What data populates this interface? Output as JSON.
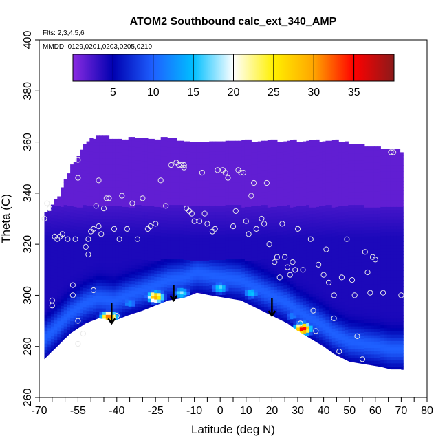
{
  "chart_data": {
    "type": "heatmap",
    "title": "ATOM2 Southbound calc_ext_340_AMP",
    "subtitle_flights": "Flts: 2,3,4,5,6",
    "subtitle_dates": "MMDD: 0129,0201,0203,0205,0210",
    "xlabel": "Latitude (deg N)",
    "ylabel": "Theta (C)",
    "xlim": [
      -70,
      80
    ],
    "ylim": [
      260,
      400
    ],
    "x_ticks": [
      -70,
      -55,
      -40,
      -25,
      -10,
      0,
      10,
      20,
      30,
      40,
      50,
      60,
      70,
      80
    ],
    "y_ticks": [
      260,
      280,
      300,
      320,
      340,
      360,
      380,
      400
    ],
    "colorbar": {
      "range": [
        0,
        40
      ],
      "ticks": [
        5,
        10,
        15,
        20,
        25,
        30,
        35
      ],
      "colors": [
        "#8a2be2",
        "#0000b0",
        "#1e60ff",
        "#00bfff",
        "#ffffff",
        "#fff000",
        "#ffa500",
        "#ff0000",
        "#8b1a1a"
      ]
    },
    "envelope": {
      "lat": [
        -68,
        -62,
        -58,
        -52,
        -47,
        -41,
        -36,
        -30,
        -20,
        -14,
        -9,
        -4,
        2,
        8,
        14,
        20,
        26,
        30,
        35,
        40,
        44,
        50,
        56,
        62,
        66,
        70
      ],
      "theta_bottom": [
        275,
        281,
        285,
        289,
        291,
        290,
        292,
        294,
        298,
        299,
        301,
        300,
        299,
        298,
        295,
        292,
        289,
        286,
        283,
        280,
        277,
        274,
        273,
        272,
        271,
        271
      ],
      "theta_top": [
        331,
        339,
        349,
        359,
        362,
        361,
        361,
        361,
        361,
        360,
        360,
        360,
        360,
        360,
        360,
        360,
        360,
        360,
        360,
        360,
        360,
        359,
        358,
        357,
        357,
        356
      ]
    },
    "hotspots": [
      {
        "lat": -25,
        "theta": 299.5,
        "value": 30
      },
      {
        "lat": -43,
        "theta": 291.5,
        "value": 33
      },
      {
        "lat": 32,
        "theta": 287,
        "value": 36
      },
      {
        "lat": -15,
        "theta": 301,
        "value": 18
      },
      {
        "lat": 0,
        "theta": 303,
        "value": 17
      },
      {
        "lat": 12,
        "theta": 301,
        "value": 16
      },
      {
        "lat": -35,
        "theta": 297,
        "value": 13
      },
      {
        "lat": 28,
        "theta": 292,
        "value": 12
      }
    ],
    "arrows": [
      {
        "lat": -42,
        "theta_from": 297,
        "theta_to": 289
      },
      {
        "lat": -18,
        "theta_from": 304,
        "theta_to": 298
      },
      {
        "lat": 20,
        "theta_from": 299,
        "theta_to": 292
      }
    ],
    "points": [
      [
        -68,
        330
      ],
      [
        -67,
        336
      ],
      [
        -66,
        334
      ],
      [
        -65,
        296
      ],
      [
        -65,
        298
      ],
      [
        -64,
        323
      ],
      [
        -63,
        322
      ],
      [
        -62,
        323
      ],
      [
        -61,
        324
      ],
      [
        -59,
        322
      ],
      [
        -57,
        300
      ],
      [
        -57,
        304
      ],
      [
        -56,
        322
      ],
      [
        -55,
        346
      ],
      [
        -55,
        353
      ],
      [
        -55,
        290
      ],
      [
        -55,
        281
      ],
      [
        -53,
        285
      ],
      [
        -52,
        319
      ],
      [
        -51,
        316
      ],
      [
        -51,
        322
      ],
      [
        -50,
        325
      ],
      [
        -49,
        302
      ],
      [
        -49,
        326
      ],
      [
        -48,
        335
      ],
      [
        -47,
        327
      ],
      [
        -47,
        345
      ],
      [
        -46,
        324
      ],
      [
        -45,
        334
      ],
      [
        -44,
        338
      ],
      [
        -43,
        338
      ],
      [
        -41,
        326
      ],
      [
        -40,
        292
      ],
      [
        -39,
        322
      ],
      [
        -38,
        339
      ],
      [
        -36,
        326
      ],
      [
        -34,
        336
      ],
      [
        -32,
        322
      ],
      [
        -30,
        338
      ],
      [
        -28,
        326
      ],
      [
        -27,
        327
      ],
      [
        -25,
        328
      ],
      [
        -23,
        345
      ],
      [
        -21,
        335
      ],
      [
        -19,
        351
      ],
      [
        -17,
        352
      ],
      [
        -16,
        351
      ],
      [
        -15,
        351
      ],
      [
        -14,
        351
      ],
      [
        -14,
        350
      ],
      [
        -13,
        334
      ],
      [
        -12,
        333
      ],
      [
        -11,
        332
      ],
      [
        -10,
        329
      ],
      [
        -8,
        329
      ],
      [
        -7,
        348
      ],
      [
        -6,
        332
      ],
      [
        -5,
        328
      ],
      [
        -3,
        325
      ],
      [
        -2,
        326
      ],
      [
        -1,
        349
      ],
      [
        1,
        349
      ],
      [
        2,
        348
      ],
      [
        3,
        346
      ],
      [
        5,
        327
      ],
      [
        6,
        333
      ],
      [
        7,
        349
      ],
      [
        8,
        348
      ],
      [
        9,
        348
      ],
      [
        10,
        329
      ],
      [
        11,
        324
      ],
      [
        12,
        339
      ],
      [
        13,
        344
      ],
      [
        14,
        326
      ],
      [
        16,
        330
      ],
      [
        17,
        328
      ],
      [
        18,
        344
      ],
      [
        19,
        320
      ],
      [
        21,
        313
      ],
      [
        22,
        315
      ],
      [
        23,
        307
      ],
      [
        24,
        328
      ],
      [
        25,
        315
      ],
      [
        26,
        311
      ],
      [
        27,
        308
      ],
      [
        28,
        313
      ],
      [
        29,
        310
      ],
      [
        30,
        326
      ],
      [
        32,
        310
      ],
      [
        35,
        322
      ],
      [
        36,
        294
      ],
      [
        38,
        312
      ],
      [
        40,
        308
      ],
      [
        41,
        318
      ],
      [
        42,
        305
      ],
      [
        44,
        300
      ],
      [
        46,
        278
      ],
      [
        47,
        307
      ],
      [
        49,
        322
      ],
      [
        51,
        306
      ],
      [
        52,
        300
      ],
      [
        53,
        284
      ],
      [
        55,
        275
      ],
      [
        56,
        317
      ],
      [
        57,
        309
      ],
      [
        58,
        301
      ],
      [
        59,
        315
      ],
      [
        60,
        314
      ],
      [
        63,
        301
      ],
      [
        66,
        356
      ],
      [
        67,
        356
      ],
      [
        70,
        300
      ],
      [
        44,
        291
      ],
      [
        37,
        286
      ],
      [
        31,
        289
      ]
    ]
  }
}
